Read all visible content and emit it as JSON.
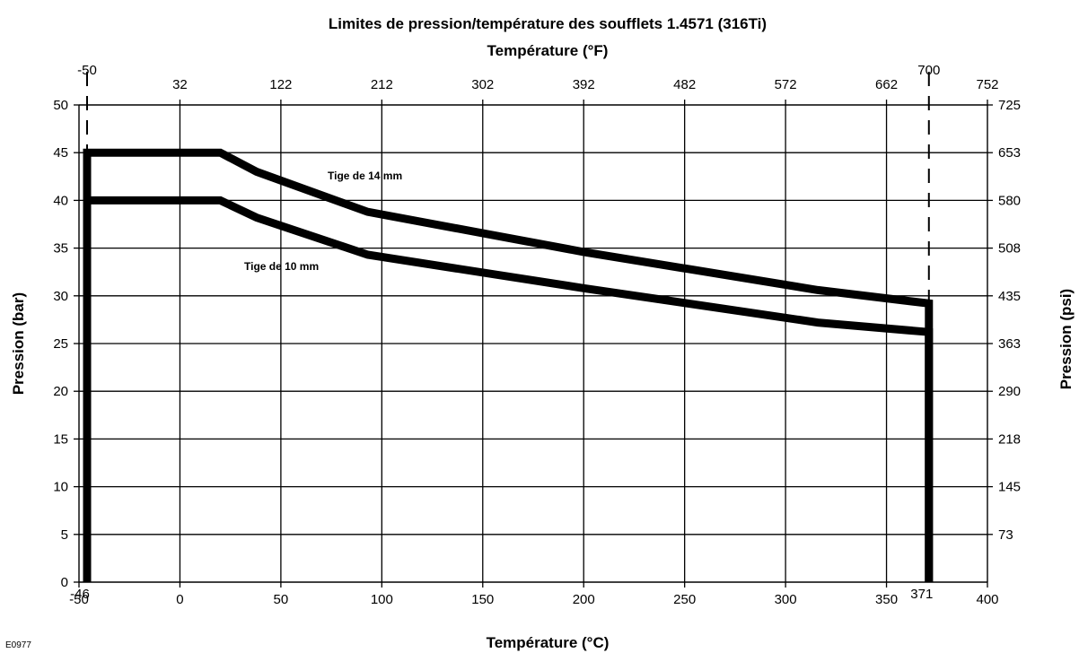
{
  "chart_data": {
    "type": "line",
    "title": "Limites de pression/température des soufflets 1.4571 (316Ti)",
    "xlabel": "Température (°C)",
    "x2label": "Température (°F)",
    "ylabel": "Pression (bar)",
    "y2label": "Pression (psi)",
    "xlim": [
      -50,
      400
    ],
    "ylim": [
      0,
      50
    ],
    "x_ticks": [
      "-50",
      "0",
      "50",
      "100",
      "150",
      "200",
      "250",
      "300",
      "350",
      "400"
    ],
    "y_ticks": [
      "0",
      "5",
      "10",
      "15",
      "20",
      "25",
      "30",
      "35",
      "40",
      "45",
      "50"
    ],
    "x2_ticks": [
      {
        "label": "32",
        "x": 0
      },
      {
        "label": "122",
        "x": 50
      },
      {
        "label": "212",
        "x": 100
      },
      {
        "label": "302",
        "x": 150
      },
      {
        "label": "392",
        "x": 200
      },
      {
        "label": "482",
        "x": 250
      },
      {
        "label": "572",
        "x": 300
      },
      {
        "label": "662",
        "x": 350
      },
      {
        "label": "752",
        "x": 400
      }
    ],
    "x2_extra": [
      {
        "label": "-50",
        "x": -46
      },
      {
        "label": "700",
        "x": 371
      }
    ],
    "y2_ticks": [
      {
        "label": "73",
        "y": 5
      },
      {
        "label": "145",
        "y": 10
      },
      {
        "label": "218",
        "y": 15
      },
      {
        "label": "290",
        "y": 20
      },
      {
        "label": "363",
        "y": 25
      },
      {
        "label": "435",
        "y": 30
      },
      {
        "label": "508",
        "y": 35
      },
      {
        "label": "580",
        "y": 40
      },
      {
        "label": "653",
        "y": 45
      },
      {
        "label": "725",
        "y": 50
      }
    ],
    "limit_markers": [
      {
        "label": "-46",
        "x": -46
      },
      {
        "label": "371",
        "x": 371
      }
    ],
    "series": [
      {
        "name": "Tige de 14 mm",
        "x": [
          -46,
          -46,
          20,
          38,
          93,
          200,
          316,
          371,
          371
        ],
        "y": [
          0,
          45,
          45,
          43,
          38.8,
          34.6,
          30.6,
          29.2,
          0
        ]
      },
      {
        "name": "Tige de 10 mm",
        "x": [
          -46,
          -46,
          20,
          38,
          93,
          200,
          316,
          371,
          371
        ],
        "y": [
          0,
          40,
          40,
          38.2,
          34.3,
          30.8,
          27.2,
          26.2,
          0
        ]
      }
    ],
    "grid": true,
    "figure_code": "E0977"
  }
}
